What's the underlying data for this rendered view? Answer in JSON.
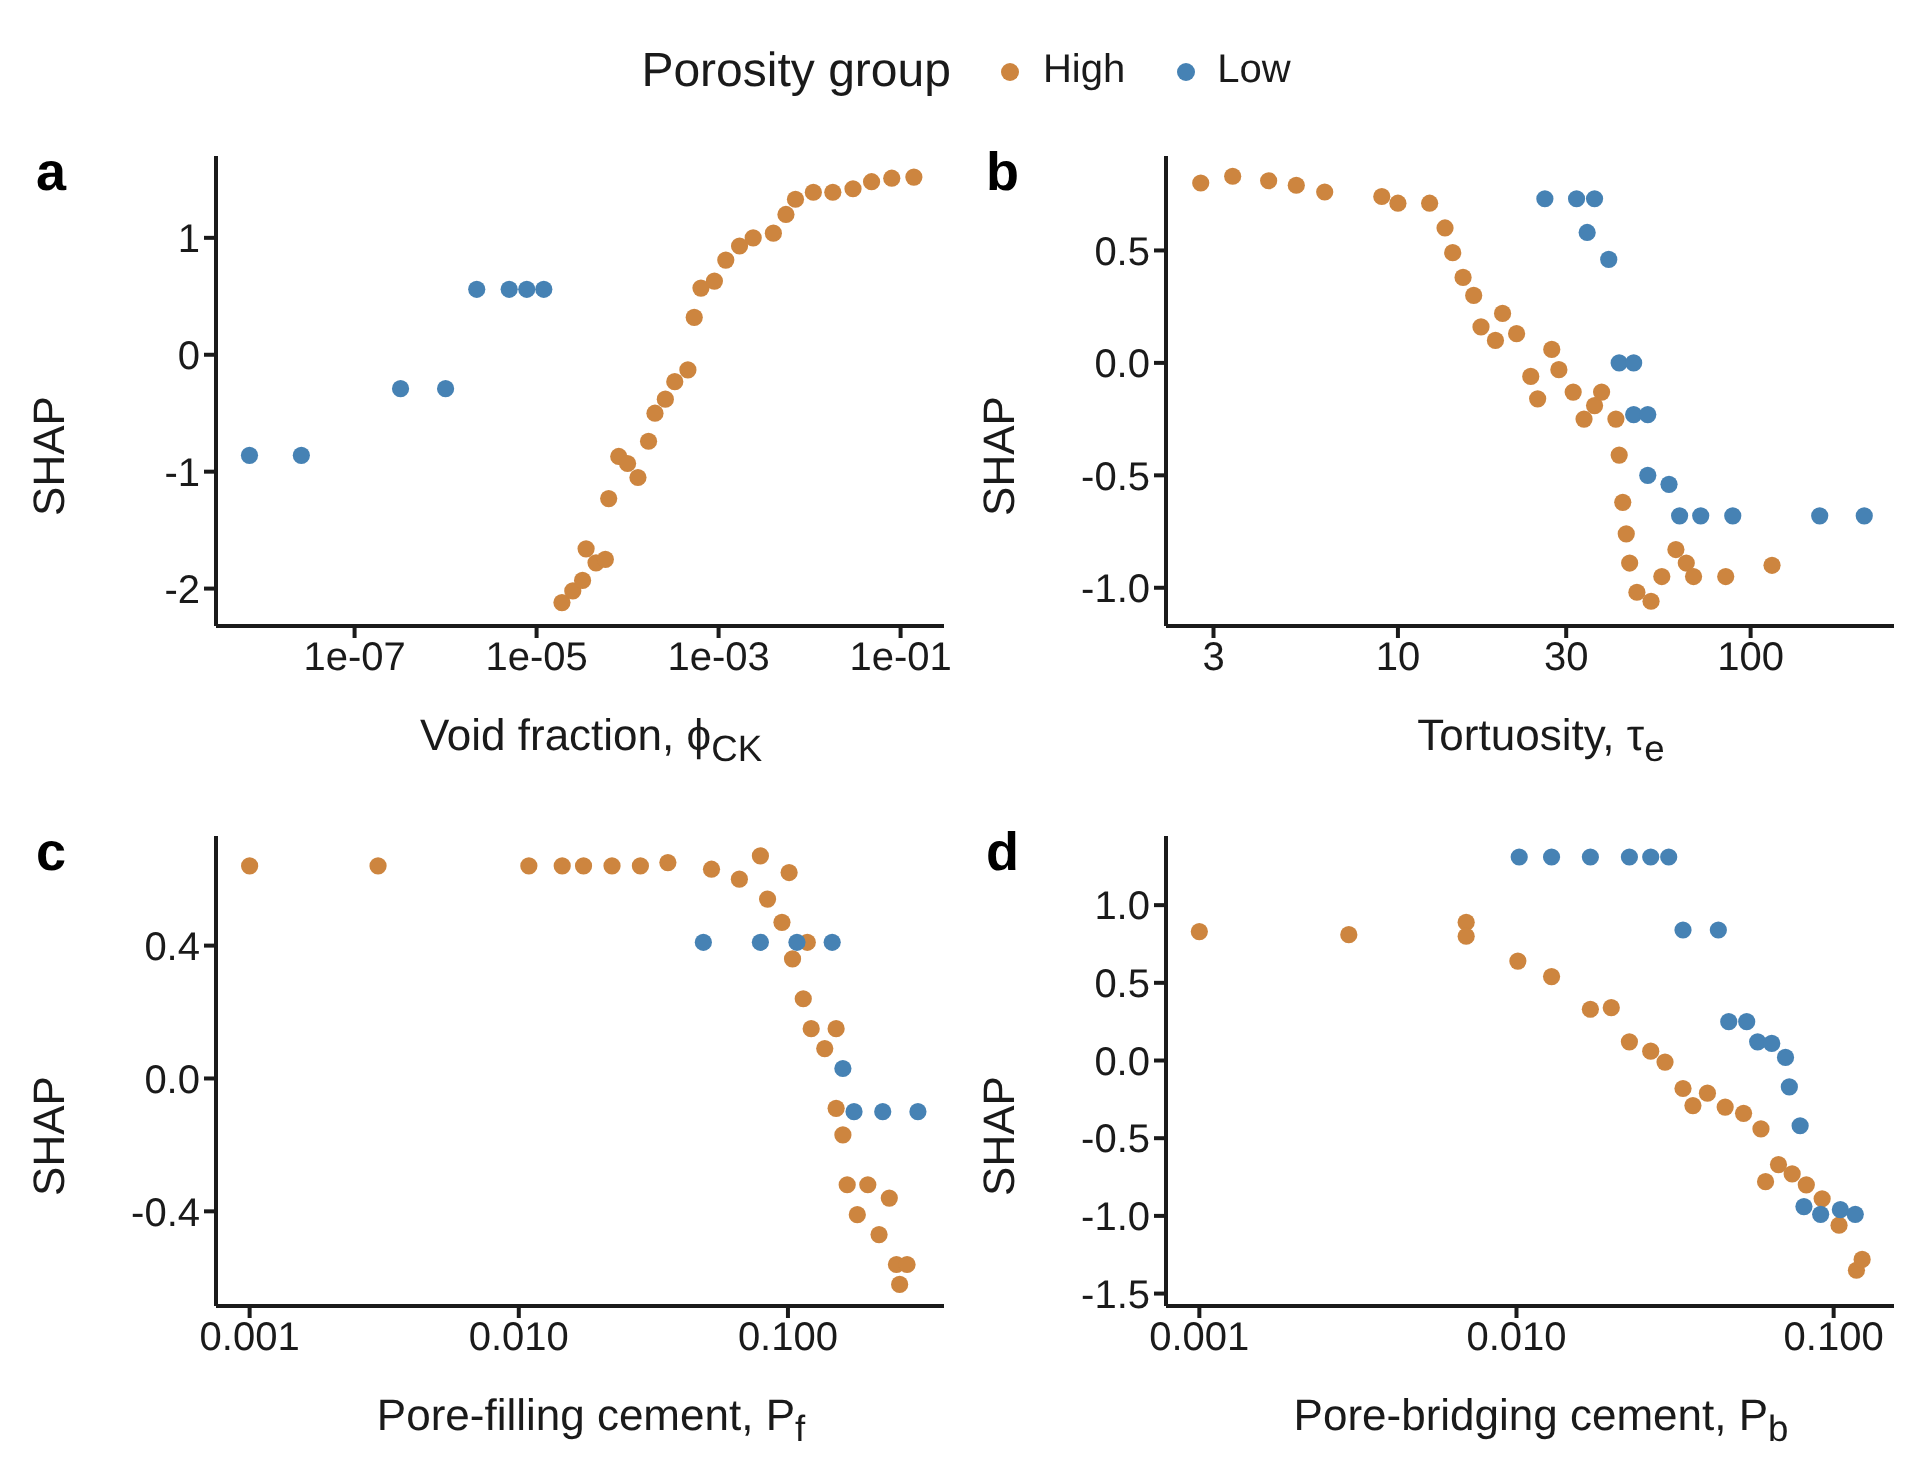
{
  "chart_data": [
    {
      "type": "scatter",
      "title": "a",
      "xlabel": "Void fraction, ϕ$_{CK}$",
      "ylabel": "SHAP",
      "legend_title": "Porosity group",
      "legend": "top",
      "log": "x",
      "marker": "circle",
      "xlim": [
        3e-09,
        0.3
      ],
      "xticks": [
        {
          "value": 1e-07,
          "label": "1e-07"
        },
        {
          "value": 1e-05,
          "label": "1e-05"
        },
        {
          "value": 0.001,
          "label": "1e-03"
        },
        {
          "value": 0.1,
          "label": "1e-01"
        }
      ],
      "ylim": [
        -2.32,
        1.7
      ],
      "yticks": [
        -2,
        -1,
        0,
        1
      ],
      "series": [
        {
          "name": "High",
          "color": "#cd853f",
          "x": [
            1.9e-05,
            2.5e-05,
            3.2e-05,
            3.5e-05,
            4.5e-05,
            5.7e-05,
            6.2e-05,
            8e-05,
            0.0001,
            0.00013,
            0.00017,
            0.0002,
            0.00026,
            0.00033,
            0.00046,
            0.00054,
            0.00064,
            0.0009,
            0.0012,
            0.0017,
            0.0024,
            0.004,
            0.0055,
            0.007,
            0.011,
            0.018,
            0.03,
            0.048,
            0.08,
            0.14
          ],
          "values": [
            -2.12,
            -2.02,
            -1.93,
            -1.66,
            -1.78,
            -1.75,
            -1.23,
            -0.87,
            -0.93,
            -1.05,
            -0.74,
            -0.5,
            -0.38,
            -0.23,
            -0.13,
            0.32,
            0.57,
            0.63,
            0.81,
            0.93,
            1.0,
            1.04,
            1.2,
            1.33,
            1.39,
            1.39,
            1.42,
            1.48,
            1.51,
            1.52
          ]
        },
        {
          "name": "Low",
          "color": "#4682b4",
          "x": [
            7e-09,
            2.6e-08,
            3.2e-07,
            1e-06,
            2.2e-06,
            5e-06,
            7.8e-06,
            1.2e-05
          ],
          "values": [
            -0.86,
            -0.86,
            -0.29,
            -0.29,
            0.56,
            0.56,
            0.56,
            0.56
          ]
        }
      ]
    },
    {
      "type": "scatter",
      "title": "b",
      "xlabel": "Tortuosity, τ$_{e}$",
      "ylabel": "SHAP",
      "log": "x",
      "marker": "circle",
      "xlim": [
        2.2,
        255
      ],
      "xticks": [
        3,
        10,
        30,
        100
      ],
      "ylim": [
        -1.17,
        0.92
      ],
      "yticks": [
        {
          "value": -1,
          "label": "-1.0"
        },
        {
          "value": -0.5,
          "label": "-0.5"
        },
        {
          "value": 0,
          "label": "0.0"
        },
        {
          "value": 0.5,
          "label": "0.5"
        }
      ],
      "series": [
        {
          "color": "#cd853f",
          "x": [
            2.76,
            3.4,
            4.3,
            5.15,
            6.2,
            9.0,
            10,
            12.3,
            13.6,
            14.3,
            15.3,
            16.4,
            17.2,
            18.9,
            19.8,
            21.7,
            23.8,
            24.9,
            27.3,
            28.6,
            31.4,
            33.7,
            36.1,
            37.8,
            41.5,
            42.4,
            43.4,
            44.4,
            45.4,
            47.6,
            52.2,
            56,
            61.4,
            65.7,
            68.9,
            85,
            115
          ],
          "values": [
            0.8,
            0.83,
            0.81,
            0.79,
            0.76,
            0.74,
            0.71,
            0.71,
            0.6,
            0.49,
            0.38,
            0.3,
            0.16,
            0.1,
            0.22,
            0.13,
            -0.06,
            -0.16,
            0.06,
            -0.03,
            -0.13,
            -0.25,
            -0.19,
            -0.13,
            -0.25,
            -0.41,
            -0.62,
            -0.76,
            -0.89,
            -1.02,
            -1.06,
            -0.95,
            -0.83,
            -0.89,
            -0.95,
            -0.95,
            -0.9
          ]
        },
        {
          "color": "#4682b4",
          "x": [
            26.1,
            32.1,
            34.4,
            36.1,
            39.6,
            42.4,
            46.6,
            46.6,
            51.1,
            51.1,
            58.7,
            62.9,
            72.2,
            89,
            157,
            210
          ],
          "values": [
            0.73,
            0.73,
            0.58,
            0.73,
            0.46,
            0.0,
            0.0,
            -0.23,
            -0.23,
            -0.5,
            -0.54,
            -0.68,
            -0.68,
            -0.68,
            -0.68,
            -0.68
          ]
        }
      ]
    },
    {
      "type": "scatter",
      "title": "c",
      "xlabel": "Pore-filling cement, P$_{f}$",
      "ylabel": "SHAP",
      "log": "x",
      "marker": "circle",
      "xlim": [
        0.00075,
        0.38
      ],
      "xticks": [
        {
          "value": 0.001,
          "label": "0.001"
        },
        {
          "value": 0.01,
          "label": "0.010"
        },
        {
          "value": 0.1,
          "label": "0.100"
        }
      ],
      "ylim": [
        -0.685,
        0.73
      ],
      "yticks": [
        {
          "value": -0.4,
          "label": "-0.4"
        },
        {
          "value": 0,
          "label": "0.0"
        },
        {
          "value": 0.4,
          "label": "0.4"
        }
      ],
      "series": [
        {
          "color": "#cd853f",
          "x": [
            0.001,
            0.003,
            0.0109,
            0.0145,
            0.0174,
            0.0222,
            0.0283,
            0.0358,
            0.052,
            0.066,
            0.079,
            0.084,
            0.095,
            0.101,
            0.118,
            0.104,
            0.114,
            0.122,
            0.137,
            0.151,
            0.151,
            0.16,
            0.166,
            0.181,
            0.198,
            0.218,
            0.238,
            0.253,
            0.26,
            0.277
          ],
          "values": [
            0.64,
            0.64,
            0.64,
            0.64,
            0.64,
            0.64,
            0.64,
            0.65,
            0.63,
            0.6,
            0.67,
            0.54,
            0.47,
            0.62,
            0.41,
            0.36,
            0.24,
            0.15,
            0.09,
            0.15,
            -0.09,
            -0.17,
            -0.32,
            -0.41,
            -0.32,
            -0.47,
            -0.36,
            -0.56,
            -0.62,
            -0.56
          ]
        },
        {
          "color": "#4682b4",
          "x": [
            0.0485,
            0.079,
            0.108,
            0.146,
            0.16,
            0.176,
            0.225,
            0.304
          ],
          "values": [
            0.41,
            0.41,
            0.41,
            0.41,
            0.03,
            -0.1,
            -0.1,
            -0.1
          ]
        }
      ]
    },
    {
      "type": "scatter",
      "title": "d",
      "xlabel": "Pore-bridging cement, P$_{b}$",
      "ylabel": "SHAP",
      "log": "x",
      "marker": "circle",
      "xlim": [
        0.000785,
        0.155
      ],
      "xticks": [
        {
          "value": 0.001,
          "label": "0.001"
        },
        {
          "value": 0.01,
          "label": "0.010"
        },
        {
          "value": 0.1,
          "label": "0.100"
        }
      ],
      "ylim": [
        -1.58,
        1.445
      ],
      "yticks": [
        {
          "value": -1.5,
          "label": "-1.5"
        },
        {
          "value": -1,
          "label": "-1.0"
        },
        {
          "value": -0.5,
          "label": "-0.5"
        },
        {
          "value": 0,
          "label": "0.0"
        },
        {
          "value": 0.5,
          "label": "0.5"
        },
        {
          "value": 1,
          "label": "1.0"
        }
      ],
      "series": [
        {
          "color": "#cd853f",
          "x": [
            0.001,
            0.00296,
            0.00694,
            0.00694,
            0.0101,
            0.0129,
            0.0171,
            0.0199,
            0.0227,
            0.0265,
            0.0294,
            0.0335,
            0.036,
            0.04,
            0.0455,
            0.052,
            0.059,
            0.061,
            0.067,
            0.074,
            0.082,
            0.092,
            0.104,
            0.118,
            0.123
          ],
          "values": [
            0.83,
            0.81,
            0.89,
            0.8,
            0.64,
            0.54,
            0.33,
            0.34,
            0.12,
            0.06,
            -0.01,
            -0.18,
            -0.29,
            -0.21,
            -0.3,
            -0.34,
            -0.44,
            -0.78,
            -0.67,
            -0.73,
            -0.8,
            -0.89,
            -1.06,
            -1.35,
            -1.28
          ]
        },
        {
          "color": "#4682b4",
          "x": [
            0.0102,
            0.0129,
            0.0171,
            0.0227,
            0.0265,
            0.0302,
            0.0335,
            0.0433,
            0.0467,
            0.0532,
            0.0576,
            0.0638,
            0.0705,
            0.0725,
            0.0784,
            0.0806,
            0.091,
            0.105,
            0.117
          ],
          "values": [
            1.31,
            1.31,
            1.31,
            1.31,
            1.31,
            1.31,
            0.84,
            0.84,
            0.25,
            0.25,
            0.12,
            0.11,
            0.02,
            -0.17,
            -0.42,
            -0.94,
            -0.99,
            -0.96,
            -0.99
          ]
        }
      ]
    }
  ]
}
